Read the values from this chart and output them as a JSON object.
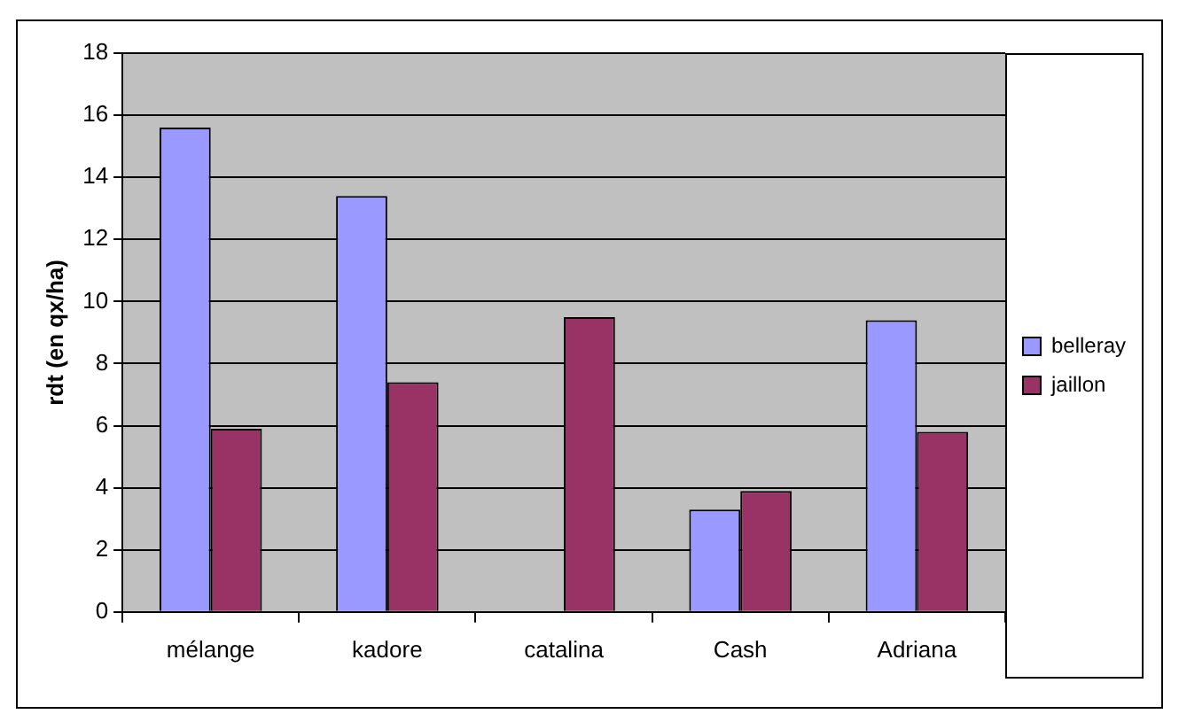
{
  "chart_data": {
    "type": "bar",
    "ylabel": "rdt (en qx/ha)",
    "categories": [
      "mélange",
      "kadore",
      "catalina",
      "Cash",
      "Adriana"
    ],
    "series": [
      {
        "name": "belleray",
        "color": "#9999ff",
        "values": [
          15.6,
          13.4,
          null,
          3.3,
          9.4
        ]
      },
      {
        "name": "jaillon",
        "color": "#993366",
        "values": [
          5.9,
          7.4,
          9.5,
          3.9,
          5.8
        ]
      }
    ],
    "ylim": [
      0,
      18
    ],
    "yticks": [
      0,
      2,
      4,
      6,
      8,
      10,
      12,
      14,
      16,
      18
    ],
    "grid": "y",
    "legend": "right"
  }
}
